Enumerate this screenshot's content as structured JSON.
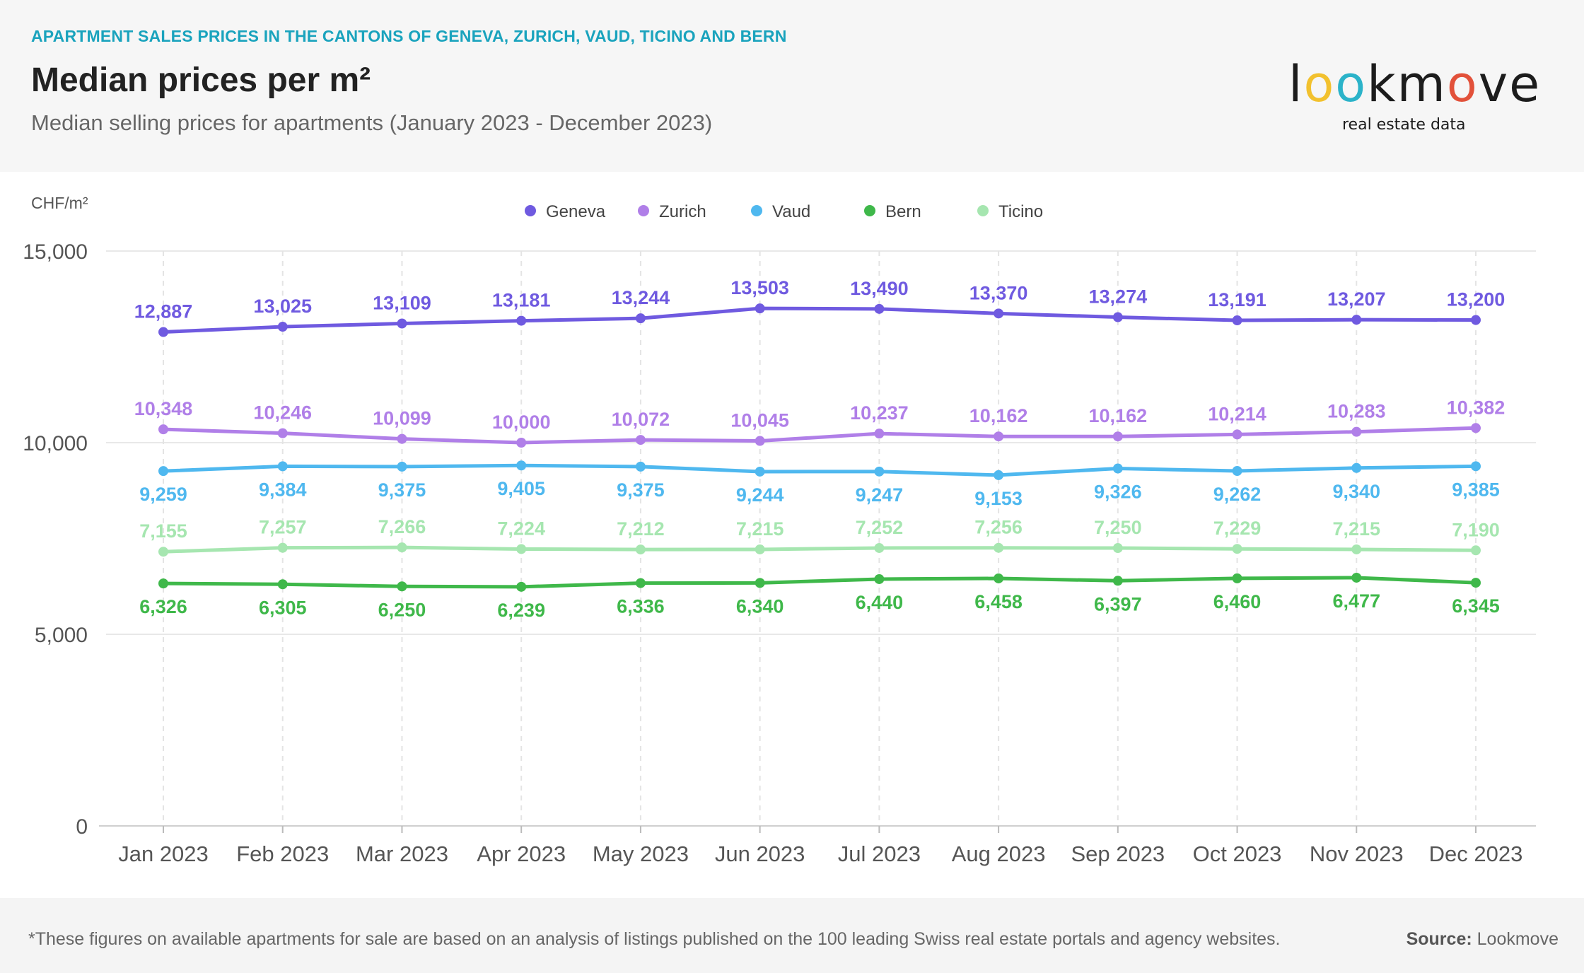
{
  "header": {
    "supertitle": "APARTMENT SALES PRICES IN THE CANTONS OF GENEVA, ZURICH, VAUD, TICINO AND BERN",
    "title": "Median prices per m²",
    "subtitle": "Median selling prices for apartments (January 2023 - December 2023)"
  },
  "logo": {
    "tagline": "real estate data",
    "letters": [
      {
        "ch": "l",
        "color": "#1c1c1c"
      },
      {
        "ch": "o",
        "color": "#f2c12e"
      },
      {
        "ch": "o",
        "color": "#2bb3c9"
      },
      {
        "ch": "k",
        "color": "#1c1c1c"
      },
      {
        "ch": "m",
        "color": "#1c1c1c"
      },
      {
        "ch": "o",
        "color": "#e2513a"
      },
      {
        "ch": "v",
        "color": "#1c1c1c"
      },
      {
        "ch": "e",
        "color": "#1c1c1c"
      }
    ]
  },
  "footer": {
    "note": "*These figures on available apartments for sale are based on an analysis of listings published on the 100 leading Swiss real estate portals and agency websites.",
    "source_label": "Source:",
    "source_value": "Lookmove"
  },
  "chart_data": {
    "type": "line",
    "ylabel": "CHF/m²",
    "ylim": [
      0,
      15000
    ],
    "yticks": [
      0,
      5000,
      10000,
      15000
    ],
    "ytick_labels": [
      "0",
      "5,000",
      "10,000",
      "15,000"
    ],
    "grid": true,
    "legend_position": "top-center",
    "categories": [
      "Jan 2023",
      "Feb 2023",
      "Mar 2023",
      "Apr 2023",
      "May 2023",
      "Jun 2023",
      "Jul 2023",
      "Aug 2023",
      "Sep 2023",
      "Oct 2023",
      "Nov 2023",
      "Dec 2023"
    ],
    "series": [
      {
        "name": "Geneva",
        "color": "#6f5ae0",
        "label_position": "above",
        "values": [
          12887,
          13025,
          13109,
          13181,
          13244,
          13503,
          13490,
          13370,
          13274,
          13191,
          13207,
          13200
        ]
      },
      {
        "name": "Zurich",
        "color": "#b07fe8",
        "label_position": "above",
        "values": [
          10348,
          10246,
          10099,
          10000,
          10072,
          10045,
          10237,
          10162,
          10162,
          10214,
          10283,
          10382
        ]
      },
      {
        "name": "Vaud",
        "color": "#4fb8ef",
        "label_position": "below",
        "values": [
          9259,
          9384,
          9375,
          9405,
          9375,
          9244,
          9247,
          9153,
          9326,
          9262,
          9340,
          9385
        ]
      },
      {
        "name": "Bern",
        "color": "#3fb84a",
        "label_position": "below",
        "values": [
          6326,
          6305,
          6250,
          6239,
          6336,
          6340,
          6440,
          6458,
          6397,
          6460,
          6477,
          6345
        ]
      },
      {
        "name": "Ticino",
        "color": "#a6e6b0",
        "label_position": "above",
        "values": [
          7155,
          7257,
          7266,
          7224,
          7212,
          7215,
          7252,
          7256,
          7250,
          7229,
          7215,
          7190
        ]
      }
    ]
  }
}
